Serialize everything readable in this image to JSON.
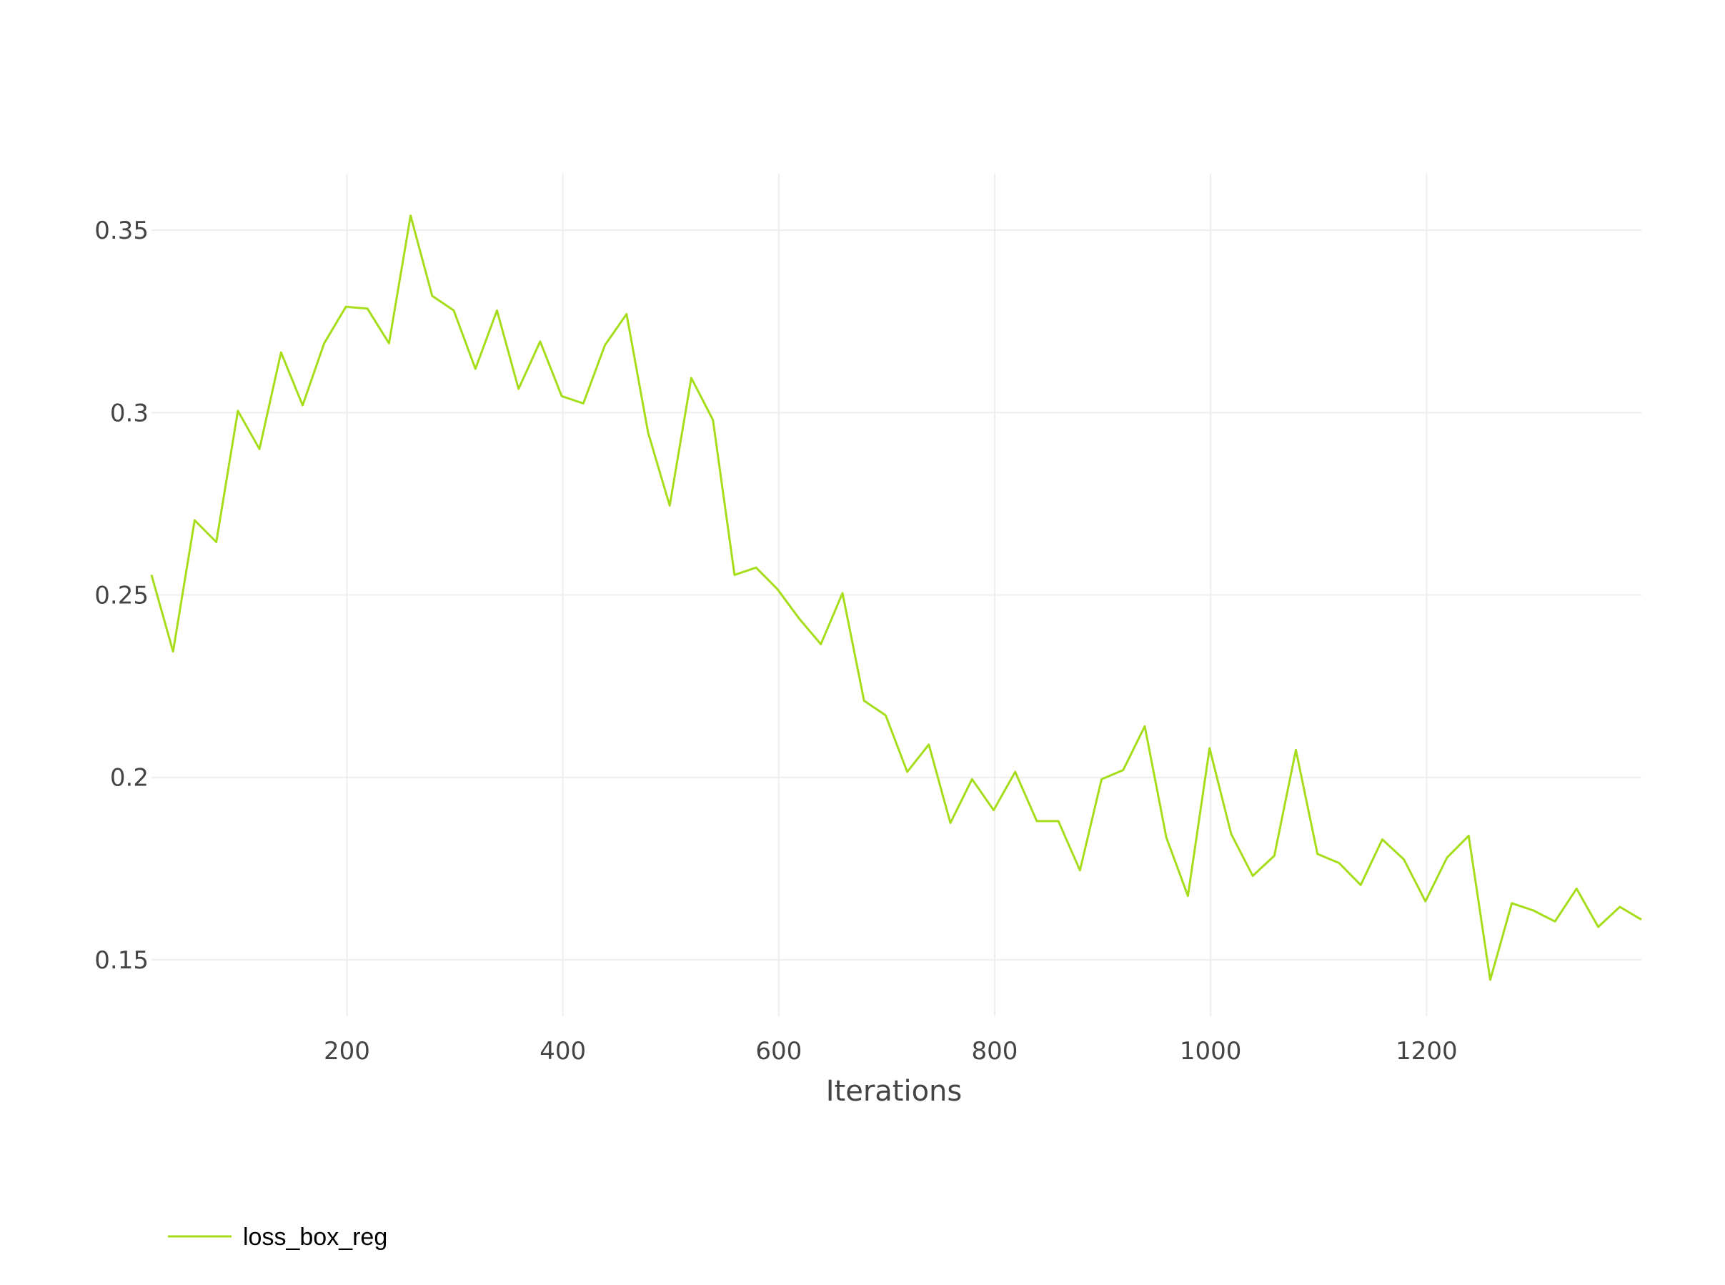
{
  "chart_data": {
    "type": "line",
    "xlabel": "Iterations",
    "ylabel": "",
    "xlim": [
      19,
      1399
    ],
    "ylim": [
      0.1345,
      0.3655
    ],
    "x_ticks": [
      200,
      400,
      600,
      800,
      1000,
      1200
    ],
    "x_tick_labels": [
      "200",
      "400",
      "600",
      "800",
      "1000",
      "1200"
    ],
    "y_ticks": [
      0.15,
      0.2,
      0.25,
      0.3,
      0.35
    ],
    "y_tick_labels": [
      "0.15",
      "0.2",
      "0.25",
      "0.3",
      "0.35"
    ],
    "grid": true,
    "legend_position": "bottom-left",
    "series": [
      {
        "name": "loss_box_reg",
        "color": "#a6dd1a",
        "x": [
          19,
          39,
          59,
          79,
          99,
          119,
          139,
          159,
          179,
          199,
          219,
          239,
          259,
          279,
          299,
          319,
          339,
          359,
          379,
          399,
          419,
          439,
          459,
          479,
          499,
          519,
          539,
          559,
          579,
          599,
          619,
          639,
          659,
          679,
          699,
          719,
          739,
          759,
          779,
          799,
          819,
          839,
          859,
          879,
          899,
          919,
          939,
          959,
          979,
          999,
          1019,
          1039,
          1059,
          1079,
          1099,
          1119,
          1139,
          1159,
          1179,
          1199,
          1219,
          1239,
          1259,
          1279,
          1299,
          1319,
          1339,
          1359,
          1379,
          1399
        ],
        "values": [
          0.2555,
          0.2345,
          0.2705,
          0.2645,
          0.3005,
          0.29,
          0.3165,
          0.302,
          0.319,
          0.329,
          0.3285,
          0.319,
          0.354,
          0.332,
          0.328,
          0.312,
          0.328,
          0.3065,
          0.3195,
          0.3045,
          0.3025,
          0.3185,
          0.327,
          0.2945,
          0.2745,
          0.3095,
          0.298,
          0.2555,
          0.2575,
          0.2515,
          0.2435,
          0.2365,
          0.2505,
          0.221,
          0.217,
          0.2015,
          0.209,
          0.1875,
          0.1995,
          0.191,
          0.2015,
          0.188,
          0.188,
          0.1745,
          0.1995,
          0.202,
          0.214,
          0.1835,
          0.1675,
          0.208,
          0.1845,
          0.173,
          0.1785,
          0.2075,
          0.179,
          0.1765,
          0.1705,
          0.183,
          0.1775,
          0.166,
          0.178,
          0.184,
          0.1445,
          0.1655,
          0.1635,
          0.1605,
          0.1695,
          0.159,
          0.1645,
          0.161
        ]
      }
    ]
  }
}
